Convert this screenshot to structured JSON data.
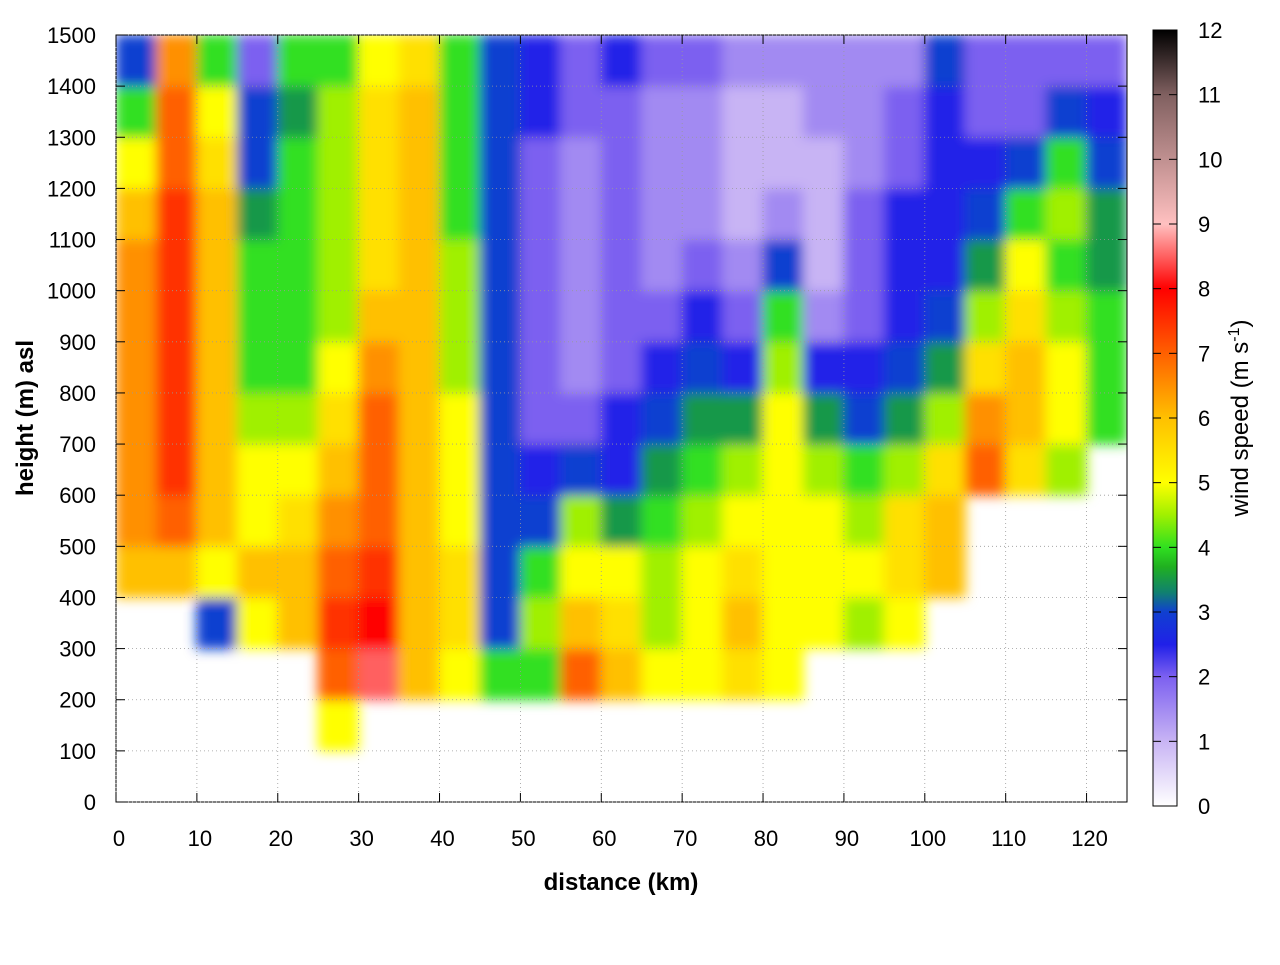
{
  "chart_data": {
    "type": "heatmap",
    "xlabel": "distance (km)",
    "ylabel": "height (m) asl",
    "colorbar_label": {
      "text": "wind speed (m s",
      "sup": "-1",
      "end": ")"
    },
    "xlim": [
      0,
      125
    ],
    "ylim": [
      0,
      1500
    ],
    "xticks": [
      0,
      10,
      20,
      30,
      40,
      50,
      60,
      70,
      80,
      90,
      100,
      110,
      120
    ],
    "yticks": [
      0,
      100,
      200,
      300,
      400,
      500,
      600,
      700,
      800,
      900,
      1000,
      1100,
      1200,
      1300,
      1400,
      1500
    ],
    "clim": [
      0,
      12
    ],
    "cticks": [
      0,
      1,
      2,
      3,
      4,
      5,
      6,
      7,
      8,
      9,
      10,
      11,
      12
    ],
    "grid": true,
    "colormap": [
      [
        0,
        "#ffffff"
      ],
      [
        1,
        "#c8b4f4"
      ],
      [
        2,
        "#7c60f0"
      ],
      [
        2.5,
        "#2020e8"
      ],
      [
        3,
        "#1040d0"
      ],
      [
        3.3,
        "#108070"
      ],
      [
        3.7,
        "#20b020"
      ],
      [
        4,
        "#30e020"
      ],
      [
        4.5,
        "#a0f000"
      ],
      [
        5,
        "#ffff00"
      ],
      [
        6,
        "#ffc000"
      ],
      [
        7,
        "#ff6000"
      ],
      [
        8,
        "#ff0000"
      ],
      [
        9,
        "#ffc0c0"
      ],
      [
        10,
        "#c09090"
      ],
      [
        11,
        "#806060"
      ],
      [
        12,
        "#000000"
      ]
    ],
    "x": [
      2.5,
      7.5,
      12.5,
      17.5,
      22.5,
      27.5,
      32.5,
      37.5,
      42.5,
      47.5,
      52.5,
      57.5,
      62.5,
      67.5,
      72.5,
      77.5,
      82.5,
      87.5,
      92.5,
      97.5,
      102.5,
      107.5,
      112.5,
      117.5,
      122.5
    ],
    "y": [
      50,
      150,
      250,
      350,
      450,
      550,
      650,
      750,
      850,
      950,
      1050,
      1150,
      1250,
      1350,
      1450
    ],
    "z": [
      [
        null,
        null,
        null,
        null,
        null,
        null,
        null,
        null,
        null,
        null,
        null,
        null,
        null,
        null,
        null,
        null,
        null,
        null,
        null,
        null,
        null,
        null,
        null,
        null,
        null
      ],
      [
        null,
        null,
        null,
        null,
        null,
        5,
        null,
        null,
        null,
        null,
        null,
        null,
        null,
        null,
        null,
        null,
        null,
        null,
        null,
        null,
        null,
        null,
        null,
        null,
        null
      ],
      [
        null,
        null,
        null,
        null,
        null,
        7,
        8.5,
        6,
        5,
        4,
        4,
        7,
        6,
        5,
        5,
        5.5,
        5,
        null,
        null,
        null,
        null,
        null,
        null,
        null,
        null
      ],
      [
        null,
        null,
        3,
        5,
        6,
        7.5,
        8,
        6,
        5.5,
        3,
        4.5,
        6,
        5.5,
        4.5,
        5,
        6,
        5,
        5,
        4.5,
        5,
        null,
        null,
        null,
        null,
        null
      ],
      [
        6,
        6,
        5,
        6,
        6,
        7,
        7.5,
        6,
        5.5,
        3,
        4,
        5,
        5,
        4.5,
        5,
        5.5,
        5,
        5,
        5,
        5.5,
        6,
        null,
        null,
        null,
        null
      ],
      [
        6.5,
        7,
        6,
        5,
        5.5,
        6.5,
        7,
        6,
        5,
        3,
        3,
        4.5,
        3.5,
        4,
        4.5,
        5,
        5,
        5,
        4.5,
        5.5,
        6,
        null,
        null,
        null,
        null
      ],
      [
        6.5,
        7.5,
        6,
        5,
        5,
        6,
        7,
        6,
        5,
        3,
        2.5,
        3,
        2.5,
        3.5,
        4,
        4.5,
        5,
        4.5,
        4,
        4.5,
        5.5,
        7,
        5.5,
        4.5,
        null
      ],
      [
        6.5,
        7.5,
        6,
        4.5,
        4.5,
        5.5,
        7,
        6,
        5,
        3,
        2,
        2,
        2.5,
        3,
        3.5,
        3.5,
        5,
        3.5,
        3,
        3.5,
        4.5,
        6.5,
        6,
        5,
        4
      ],
      [
        6.5,
        7.5,
        6,
        4,
        4,
        5,
        6.5,
        6,
        4.5,
        3,
        2,
        1.5,
        2,
        2.5,
        3,
        2.5,
        4.5,
        2.5,
        2.5,
        3,
        3.5,
        5.5,
        6,
        5,
        4
      ],
      [
        6.5,
        7.5,
        6,
        4,
        4,
        4.5,
        6,
        6,
        4.5,
        3,
        2,
        1.5,
        2,
        2,
        2.5,
        2,
        4,
        1.5,
        2,
        2.5,
        3,
        4.5,
        5.5,
        4.5,
        4
      ],
      [
        6.5,
        7.5,
        6,
        4,
        4,
        4.5,
        5.5,
        6,
        4.5,
        3,
        2,
        1.5,
        2,
        1.5,
        2,
        1.5,
        3,
        1,
        2,
        2.5,
        2.5,
        3.5,
        5,
        4,
        3.5
      ],
      [
        6,
        7.5,
        6,
        3.5,
        4,
        4.5,
        5.5,
        6,
        4,
        3,
        2,
        1.5,
        2,
        1.5,
        1.5,
        1,
        1.5,
        1,
        2,
        2.5,
        2.5,
        3,
        4,
        4.5,
        3.5
      ],
      [
        5,
        7,
        5.5,
        3,
        4,
        4.5,
        5.5,
        6,
        4,
        3,
        2,
        1.5,
        2,
        1.5,
        1.5,
        1,
        1,
        1,
        1.5,
        2,
        2.5,
        2.5,
        3,
        4,
        3
      ],
      [
        4,
        7,
        5,
        3,
        3.5,
        4.5,
        5.5,
        6,
        4,
        3,
        2.5,
        2,
        2,
        1.5,
        1.5,
        1,
        1,
        1.5,
        1.5,
        2,
        2.5,
        2,
        2,
        3,
        2.5
      ],
      [
        3,
        6.5,
        4,
        2,
        4,
        4,
        5,
        5.5,
        4,
        3,
        2.5,
        2,
        2.5,
        2,
        2,
        1.5,
        1.5,
        1.5,
        1.5,
        1.5,
        3,
        2,
        2,
        2,
        2
      ]
    ]
  }
}
